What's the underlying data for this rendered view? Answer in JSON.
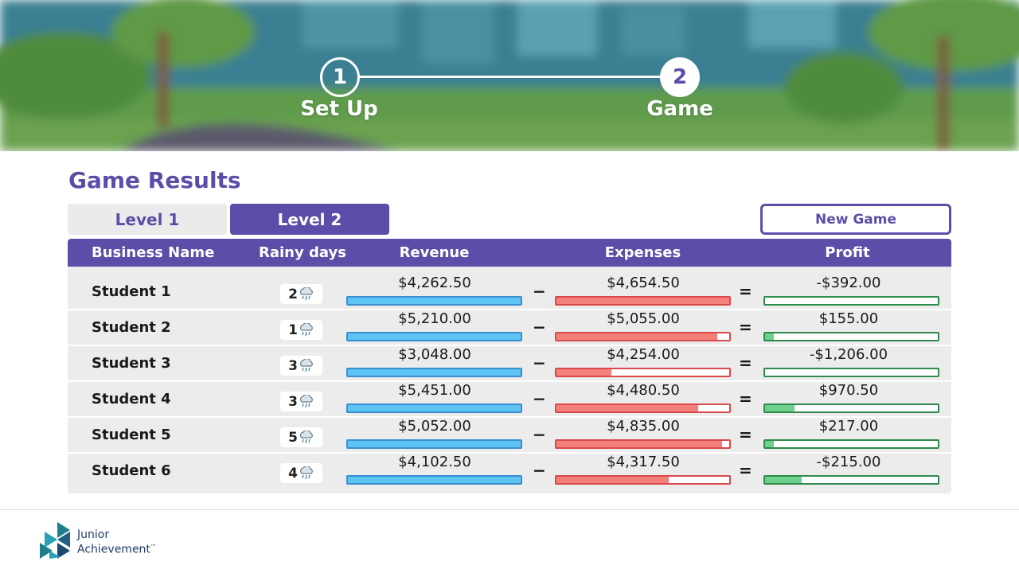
{
  "stepper": {
    "steps": [
      {
        "number": "1",
        "label": "Set Up"
      },
      {
        "number": "2",
        "label": "Game"
      }
    ]
  },
  "title": "Game Results",
  "tabs": [
    {
      "label": "Level 1",
      "active": false
    },
    {
      "label": "Level 2",
      "active": true
    }
  ],
  "new_game_label": "New Game",
  "table": {
    "headers": [
      "Business Name",
      "Rainy days",
      "Revenue",
      "Expenses",
      "Profit"
    ],
    "minus": "−",
    "equals": "=",
    "rows": [
      {
        "name": "Student 1",
        "rainy": "2",
        "revenue": "$4,262.50",
        "expenses": "$4,654.50",
        "profit": "-$392.00",
        "revenue_fill": 1.0,
        "expenses_fill": 1.0,
        "profit_fill": 0.0
      },
      {
        "name": "Student 2",
        "rainy": "1",
        "revenue": "$5,210.00",
        "expenses": "$5,055.00",
        "profit": "$155.00",
        "revenue_fill": 1.0,
        "expenses_fill": 0.93,
        "profit_fill": 0.05
      },
      {
        "name": "Student 3",
        "rainy": "3",
        "revenue": "$3,048.00",
        "expenses": "$4,254.00",
        "profit": "-$1,206.00",
        "revenue_fill": 1.0,
        "expenses_fill": 0.32,
        "profit_fill": 0.0
      },
      {
        "name": "Student 4",
        "rainy": "3",
        "revenue": "$5,451.00",
        "expenses": "$4,480.50",
        "profit": "$970.50",
        "revenue_fill": 1.0,
        "expenses_fill": 0.82,
        "profit_fill": 0.17
      },
      {
        "name": "Student 5",
        "rainy": "5",
        "revenue": "$5,052.00",
        "expenses": "$4,835.00",
        "profit": "$217.00",
        "revenue_fill": 1.0,
        "expenses_fill": 0.96,
        "profit_fill": 0.05
      },
      {
        "name": "Student 6",
        "rainy": "4",
        "revenue": "$4,102.50",
        "expenses": "$4,317.50",
        "profit": "-$215.00",
        "revenue_fill": 1.0,
        "expenses_fill": 0.65,
        "profit_fill": 0.21
      }
    ]
  },
  "logo": {
    "line1": "Junior",
    "line2": "Achievement",
    "tm": "™"
  },
  "colors": {
    "primary": "#5b4ea8",
    "revenue": "#5ec4f4",
    "expenses": "#f4807c",
    "profit": "#6fd08c"
  },
  "icons": {
    "rainy": "rain-cloud-icon"
  }
}
